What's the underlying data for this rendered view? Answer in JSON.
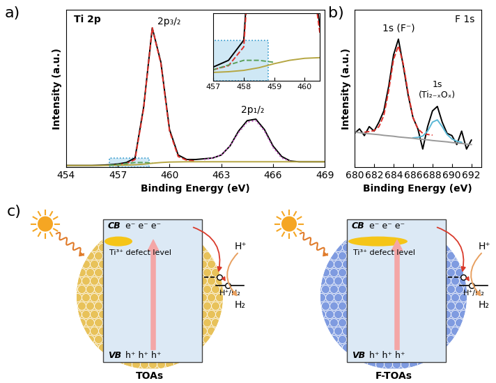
{
  "chart_data": [
    {
      "type": "line",
      "panel_label": "a)",
      "title": "Ti 2p",
      "annotations": [
        "2p₃/₂",
        "2p₁/₂"
      ],
      "x_label": "Binding Energy (eV)",
      "y_label": "Intensity (a.u.)",
      "x": [
        454,
        454.5,
        455,
        455.5,
        456,
        456.5,
        457,
        457.5,
        458,
        458.5,
        459,
        459.5,
        460,
        460.5,
        461,
        461.5,
        462,
        462.5,
        463,
        463.5,
        464,
        464.5,
        465,
        465.5,
        466,
        466.5,
        467,
        467.5,
        468,
        468.5,
        469
      ],
      "xlim": [
        454,
        469
      ],
      "xticks": [
        454,
        457,
        460,
        463,
        466,
        469
      ],
      "ylim": [
        0,
        105
      ],
      "yticks": [],
      "tick_labels": "x",
      "series": [
        {
          "color": "#000000",
          "line_style": "solid",
          "values": [
            1,
            1,
            1,
            1,
            1.2,
            1.5,
            2,
            3,
            6,
            40,
            93,
            70,
            25,
            8,
            5,
            5,
            5.5,
            6,
            8,
            14,
            24,
            31,
            32,
            25,
            14,
            7,
            4,
            3.5,
            3.5,
            3.5,
            3.5
          ]
        },
        {
          "color": "#e0302a",
          "line_style": "dashed",
          "values": [
            null,
            null,
            null,
            null,
            null,
            null,
            1.6,
            2.2,
            5,
            39,
            93,
            69,
            24,
            7,
            4.5,
            4,
            null,
            null,
            null,
            null,
            null,
            null,
            null,
            null,
            null,
            null,
            null,
            null,
            null,
            null,
            null
          ]
        },
        {
          "color": "#c45ac4",
          "line_style": "dotted",
          "values": [
            null,
            null,
            null,
            null,
            null,
            null,
            null,
            null,
            null,
            null,
            null,
            null,
            null,
            null,
            null,
            null,
            5,
            6,
            8,
            14,
            23,
            30,
            31,
            24,
            13,
            6,
            3.8,
            null,
            null,
            null,
            null
          ]
        },
        {
          "color": "#b5a642",
          "line_style": "solid",
          "values": [
            1,
            1,
            1,
            1,
            1,
            1.1,
            1.2,
            1.3,
            1.5,
            1.9,
            2.5,
            3,
            3.3,
            3.4,
            3.5,
            3.5,
            3.5,
            3.5,
            3.5,
            3.5,
            3.5,
            3.5,
            3.5,
            3.5,
            3.5,
            3.5,
            3.5,
            3.5,
            3.5,
            3.5,
            3.5
          ]
        },
        {
          "color": "#5aa05a",
          "line_style": "dashed",
          "values": [
            null,
            null,
            null,
            null,
            null,
            1.2,
            1.6,
            2.3,
            3.0,
            3.0,
            2.7,
            null,
            null,
            null,
            null,
            null,
            null,
            null,
            null,
            null,
            null,
            null,
            null,
            null,
            null,
            null,
            null,
            null,
            null,
            null,
            null
          ]
        }
      ],
      "highlight": {
        "x": [
          456.5,
          458.8
        ],
        "y": [
          0,
          6
        ],
        "color": "#cfe8f5"
      },
      "inset": {
        "xlim": [
          457,
          460.5
        ],
        "xticks": [
          457,
          458,
          459,
          460
        ],
        "ylim": [
          0,
          10
        ],
        "yticks": []
      }
    },
    {
      "type": "line",
      "panel_label": "b)",
      "title": "F 1s",
      "annotations": [
        "1s (F⁻)",
        "1s\n(Ti₂₋ₓOₓ)"
      ],
      "x_label": "Binding Energy (eV)",
      "y_label": "Intensity (a.u.)",
      "x": [
        680,
        680.5,
        681,
        681.5,
        682,
        682.5,
        683,
        683.5,
        684,
        684.5,
        685,
        685.5,
        686,
        686.5,
        687,
        687.5,
        688,
        688.5,
        689,
        689.5,
        690,
        690.5,
        691,
        691.5,
        692
      ],
      "xlim": [
        680,
        693
      ],
      "xticks": [
        680,
        682,
        684,
        686,
        688,
        690,
        692
      ],
      "ylim": [
        30,
        100
      ],
      "yticks": [],
      "tick_labels": "x",
      "series": [
        {
          "color": "#000000",
          "line_style": "solid",
          "values": [
            45,
            47,
            44,
            48,
            46,
            50,
            55,
            66,
            80,
            87,
            75,
            62,
            52,
            47,
            38,
            48,
            55,
            57,
            50,
            45,
            44,
            40,
            46,
            38,
            42
          ]
        },
        {
          "color": "#e0302a",
          "line_style": "dashed",
          "values": [
            null,
            null,
            45.5,
            45.8,
            46.2,
            48,
            53,
            64,
            78,
            84,
            76,
            63,
            52,
            47,
            45,
            44.5,
            44.2,
            null,
            null,
            null,
            null,
            null,
            null,
            null,
            null
          ]
        },
        {
          "color": "#5bb8d6",
          "line_style": "solid",
          "values": [
            null,
            null,
            null,
            null,
            null,
            null,
            null,
            null,
            null,
            null,
            null,
            null,
            43,
            43.2,
            43.8,
            46,
            50,
            51,
            48,
            44.5,
            42.5,
            41.5,
            41,
            null,
            null
          ]
        },
        {
          "color": "#999999",
          "line_style": "solid",
          "values": [
            45.5,
            45.3,
            45.0,
            44.8,
            44.6,
            44.4,
            44.1,
            43.9,
            43.7,
            43.4,
            43.2,
            43.0,
            42.8,
            42.5,
            42.3,
            42.1,
            41.8,
            41.6,
            41.4,
            41.2,
            40.9,
            40.7,
            40.5,
            40.2,
            40.0
          ]
        }
      ]
    }
  ],
  "diagram": {
    "panel_label": "c)",
    "panels": [
      {
        "caption": "TOAs",
        "cb": "CB",
        "electrons": "e⁻ e⁻ e⁻",
        "vb": "VB",
        "holes": "h⁺ h⁺ h⁺",
        "defect": "Ti³⁺ defect level",
        "redox": "H⁺/H₂",
        "reactant": "H⁺",
        "product": "H₂",
        "color": "#e8c25a"
      },
      {
        "caption": "F-TOAs",
        "cb": "CB",
        "electrons": "e⁻ e⁻ e⁻",
        "vb": "VB",
        "holes": "h⁺ h⁺ h⁺",
        "defect": "Ti³⁺ defect level",
        "redox": "H⁺/H₂",
        "reactant": "H⁺",
        "product": "H₂",
        "color": "#7f9be0"
      }
    ]
  }
}
